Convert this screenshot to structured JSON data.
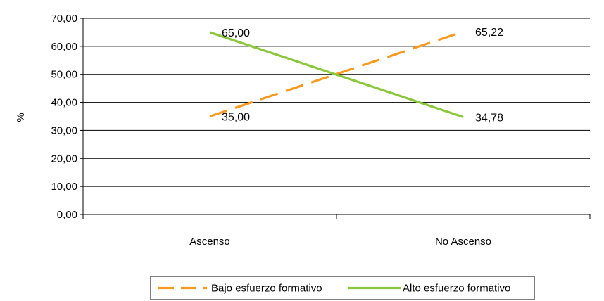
{
  "chart_data": {
    "type": "line",
    "categories": [
      "Ascenso",
      "No Ascenso"
    ],
    "series": [
      {
        "name": "Bajo esfuerzo formativo",
        "values": [
          35.0,
          65.22
        ],
        "labels": [
          "35,00",
          "65,22"
        ],
        "color": "#f59a23",
        "dash": "dashed"
      },
      {
        "name": "Alto esfuerzo formativo",
        "values": [
          65.0,
          34.78
        ],
        "labels": [
          "65,00",
          "34,78"
        ],
        "color": "#8cc63f",
        "dash": "solid"
      }
    ],
    "ylabel": "%",
    "xlabel": "",
    "ylim": [
      0,
      70
    ],
    "yticks": [
      "0,00",
      "10,00",
      "20,00",
      "30,00",
      "40,00",
      "50,00",
      "60,00",
      "70,00"
    ],
    "grid": true,
    "legend_position": "bottom"
  }
}
